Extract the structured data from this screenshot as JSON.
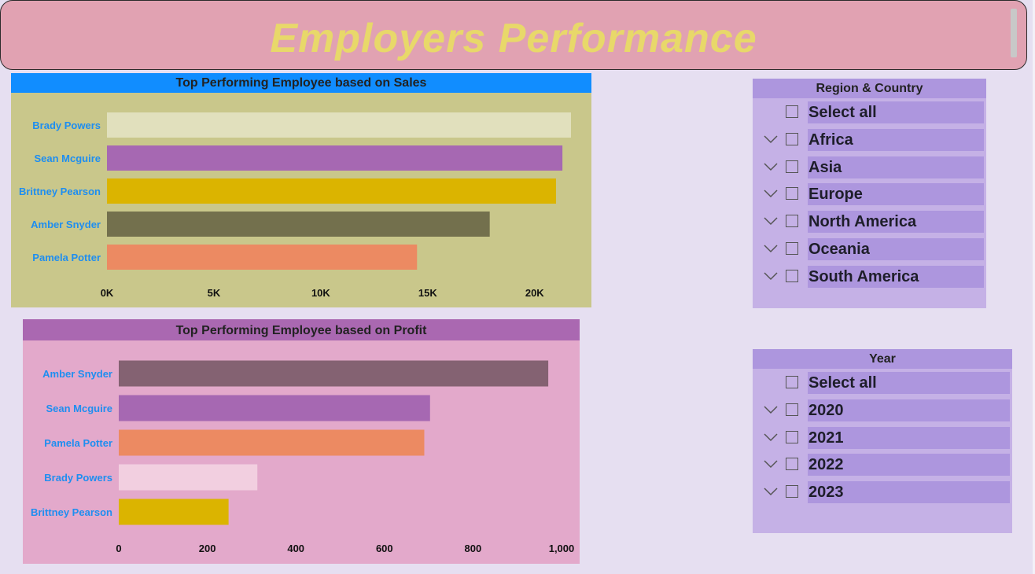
{
  "header": {
    "title": "Employers Performance"
  },
  "colors": {
    "page_bg": "#e6dff1",
    "title_bg": "#e1a2b2",
    "title_text": "#e8d86a",
    "category_label": "#1e8ef0",
    "slicer_bg": "#c5b1e6",
    "slicer_item_bg": "#ad96de"
  },
  "chart_data": [
    {
      "type": "bar",
      "orientation": "horizontal",
      "title": "Top Performing Employee based on Sales",
      "categories": [
        "Brady Powers",
        "Sean Mcguire",
        "Brittney Pearson",
        "Amber Snyder",
        "Pamela Potter"
      ],
      "values": [
        21700,
        21300,
        21000,
        17900,
        14500
      ],
      "colors": [
        "#e1e0bd",
        "#a668b2",
        "#dbb400",
        "#73704d",
        "#ec8a62"
      ],
      "xticks": [
        "0K",
        "5K",
        "10K",
        "15K",
        "20K"
      ],
      "xlim": [
        0,
        22500
      ],
      "grid": false,
      "background": "#c9c78b",
      "header_bg": "#118dff"
    },
    {
      "type": "bar",
      "orientation": "horizontal",
      "title": "Top Performing Employee based on Profit",
      "categories": [
        "Amber Snyder",
        "Sean Mcguire",
        "Pamela Potter",
        "Brady Powers",
        "Brittney Pearson"
      ],
      "values": [
        970,
        703,
        690,
        313,
        248
      ],
      "colors": [
        "#846272",
        "#a668b2",
        "#ec8a62",
        "#f2cfe0",
        "#dbb400"
      ],
      "xticks": [
        "0",
        "200",
        "400",
        "600",
        "800",
        "1,000"
      ],
      "xlim": [
        0,
        1000
      ],
      "grid": false,
      "background": "#e3a9cb",
      "header_bg": "#aa68b1"
    }
  ],
  "slicers": {
    "region": {
      "title": "Region & Country",
      "items": [
        {
          "label": "Select all",
          "expandable": false
        },
        {
          "label": "Africa",
          "expandable": true
        },
        {
          "label": "Asia",
          "expandable": true
        },
        {
          "label": "Europe",
          "expandable": true
        },
        {
          "label": "North America",
          "expandable": true
        },
        {
          "label": "Oceania",
          "expandable": true
        },
        {
          "label": "South America",
          "expandable": true
        }
      ]
    },
    "year": {
      "title": "Year",
      "items": [
        {
          "label": "Select all",
          "expandable": false
        },
        {
          "label": "2020",
          "expandable": true
        },
        {
          "label": "2021",
          "expandable": true
        },
        {
          "label": "2022",
          "expandable": true
        },
        {
          "label": "2023",
          "expandable": true
        }
      ]
    }
  }
}
